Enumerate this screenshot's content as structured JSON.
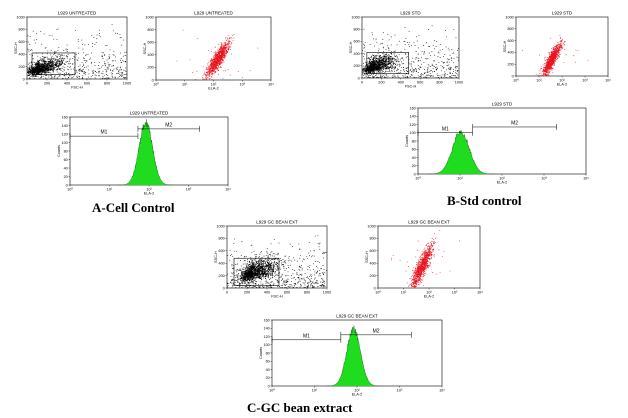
{
  "captions": {
    "a": "A-Cell Control",
    "b": "B-Std control",
    "c": "C-GC bean extract"
  },
  "chart_data": [
    {
      "type": "scatter",
      "id": "a_fsc",
      "title": "L929 UNTREATED",
      "xlabel": "FSC-H",
      "ylabel": "SSC-H",
      "xlim": [
        0,
        1000
      ],
      "ylim": [
        0,
        1000
      ],
      "xticks": [
        "0",
        "200",
        "400",
        "600",
        "800",
        "1000"
      ],
      "yticks": [
        "0",
        "200",
        "400",
        "600",
        "800",
        "1000"
      ],
      "gate_label": "R1",
      "gate": [
        50,
        480,
        70,
        420
      ],
      "cluster": {
        "cx": 130,
        "cy": 170,
        "sx": 110,
        "sy": 80,
        "n": 1300,
        "spread": 500
      },
      "color": "#000000"
    },
    {
      "type": "scatter",
      "id": "a_ela",
      "title": "L929 UNTREATED",
      "xlabel": "ELA-2",
      "ylabel": "SSC-H",
      "xscale": "log",
      "xlim": [
        1,
        10000
      ],
      "ylim": [
        0,
        1000
      ],
      "xticks": [
        "10⁰",
        "10¹",
        "10²",
        "10³",
        "10⁴"
      ],
      "yticks": [
        "0",
        "200",
        "400",
        "600",
        "800",
        "1000"
      ],
      "cluster": {
        "cx": 2.15,
        "cy": 330,
        "sx": 0.22,
        "sy": 90,
        "n": 1100,
        "spread": 30
      },
      "color": "#e8141e"
    },
    {
      "type": "histogram",
      "id": "a_hist",
      "title": "L929 UNTREATED",
      "xlabel": "ELA-2",
      "ylabel": "Counts",
      "xscale": "log",
      "xlim": [
        1,
        10000
      ],
      "ylim": [
        0,
        160
      ],
      "xticks": [
        "10⁰",
        "10¹",
        "10²",
        "10³",
        "10⁴"
      ],
      "yticks": [
        "0",
        "20",
        "40",
        "60",
        "80",
        "100",
        "120",
        "140",
        "160"
      ],
      "peak_log": 1.92,
      "peak_height": 156,
      "width": 0.17,
      "markers": [
        {
          "label": "M1",
          "from_log": 0.0,
          "to_log": 1.72,
          "level": 115
        },
        {
          "label": "M2",
          "from_log": 1.72,
          "to_log": 3.28,
          "level": 132
        }
      ],
      "color": "#1fdc1f"
    },
    {
      "type": "scatter",
      "id": "b_fsc",
      "title": "L929 STD",
      "xlabel": "FSC-H",
      "ylabel": "SSC-H",
      "xlim": [
        0,
        1000
      ],
      "ylim": [
        0,
        1000
      ],
      "xticks": [
        "0",
        "200",
        "400",
        "600",
        "800",
        "1000"
      ],
      "yticks": [
        "0",
        "200",
        "400",
        "600",
        "800",
        "1000"
      ],
      "gate_label": "R1",
      "gate": [
        50,
        480,
        70,
        420
      ],
      "cluster": {
        "cx": 130,
        "cy": 190,
        "sx": 110,
        "sy": 90,
        "n": 1300,
        "spread": 500
      },
      "color": "#000000"
    },
    {
      "type": "scatter",
      "id": "b_ela",
      "title": "L929 STD",
      "xlabel": "ELA-2",
      "ylabel": "SSC-H",
      "xscale": "log",
      "xlim": [
        1,
        10000
      ],
      "ylim": [
        0,
        1000
      ],
      "xticks": [
        "10⁰",
        "10¹",
        "10²",
        "10³",
        "10⁴"
      ],
      "yticks": [
        "0",
        "200",
        "400",
        "600",
        "800",
        "1000"
      ],
      "cluster": {
        "cx": 1.55,
        "cy": 280,
        "sx": 0.22,
        "sy": 85,
        "n": 1100,
        "spread": 30
      },
      "color": "#e8141e"
    },
    {
      "type": "histogram",
      "id": "b_hist",
      "title": "L929 STD",
      "xlabel": "ELA-2",
      "ylabel": "Counts",
      "xscale": "log",
      "xlim": [
        1,
        10000
      ],
      "ylim": [
        0,
        160
      ],
      "xticks": [
        "10⁰",
        "10¹",
        "10²",
        "10³",
        "10⁴"
      ],
      "yticks": [
        "0",
        "20",
        "40",
        "60",
        "80",
        "100",
        "120",
        "140",
        "160"
      ],
      "peak_log": 1.02,
      "peak_height": 110,
      "width": 0.2,
      "markers": [
        {
          "label": "M1",
          "from_log": 0.0,
          "to_log": 1.3,
          "level": 100
        },
        {
          "label": "M2",
          "from_log": 1.3,
          "to_log": 3.3,
          "level": 114
        }
      ],
      "color": "#1fdc1f"
    },
    {
      "type": "scatter",
      "id": "c_fsc",
      "title": "L929 GC BEAN EXT",
      "xlabel": "FSC-H",
      "ylabel": "SSC-H",
      "xlim": [
        0,
        1000
      ],
      "ylim": [
        0,
        1000
      ],
      "xticks": [
        "0",
        "200",
        "400",
        "600",
        "800",
        "1000"
      ],
      "yticks": [
        "0",
        "200",
        "400",
        "600",
        "800",
        "1000"
      ],
      "gate_label": "R1",
      "gate": [
        70,
        520,
        40,
        480
      ],
      "cluster": {
        "cx": 260,
        "cy": 250,
        "sx": 120,
        "sy": 110,
        "n": 1500,
        "spread": 600
      },
      "color": "#000000"
    },
    {
      "type": "scatter",
      "id": "c_ela",
      "title": "L929 GC BEAN EXT",
      "xlabel": "ELA-2",
      "ylabel": "SSC-H",
      "xscale": "log",
      "xlim": [
        1,
        10000
      ],
      "ylim": [
        0,
        1000
      ],
      "xticks": [
        "10⁰",
        "10¹",
        "10²",
        "10³",
        "10⁴"
      ],
      "yticks": [
        "0",
        "200",
        "400",
        "600",
        "800",
        "1000"
      ],
      "cluster": {
        "cx": 1.72,
        "cy": 340,
        "sx": 0.22,
        "sy": 110,
        "n": 1100,
        "spread": 30
      },
      "color": "#e8141e"
    },
    {
      "type": "histogram",
      "id": "c_hist",
      "title": "L929 GC BEAN EXT",
      "xlabel": "ELA-2",
      "ylabel": "Counts",
      "xscale": "log",
      "xlim": [
        1,
        10000
      ],
      "ylim": [
        0,
        160
      ],
      "xticks": [
        "10⁰",
        "10¹",
        "10²",
        "10³",
        "10⁴"
      ],
      "yticks": [
        "0",
        "20",
        "40",
        "60",
        "80",
        "100",
        "120",
        "140",
        "160"
      ],
      "peak_log": 1.92,
      "peak_height": 148,
      "width": 0.16,
      "markers": [
        {
          "label": "M1",
          "from_log": 0.0,
          "to_log": 1.62,
          "level": 112
        },
        {
          "label": "M2",
          "from_log": 1.62,
          "to_log": 3.28,
          "level": 124
        }
      ],
      "color": "#1fdc1f"
    }
  ]
}
